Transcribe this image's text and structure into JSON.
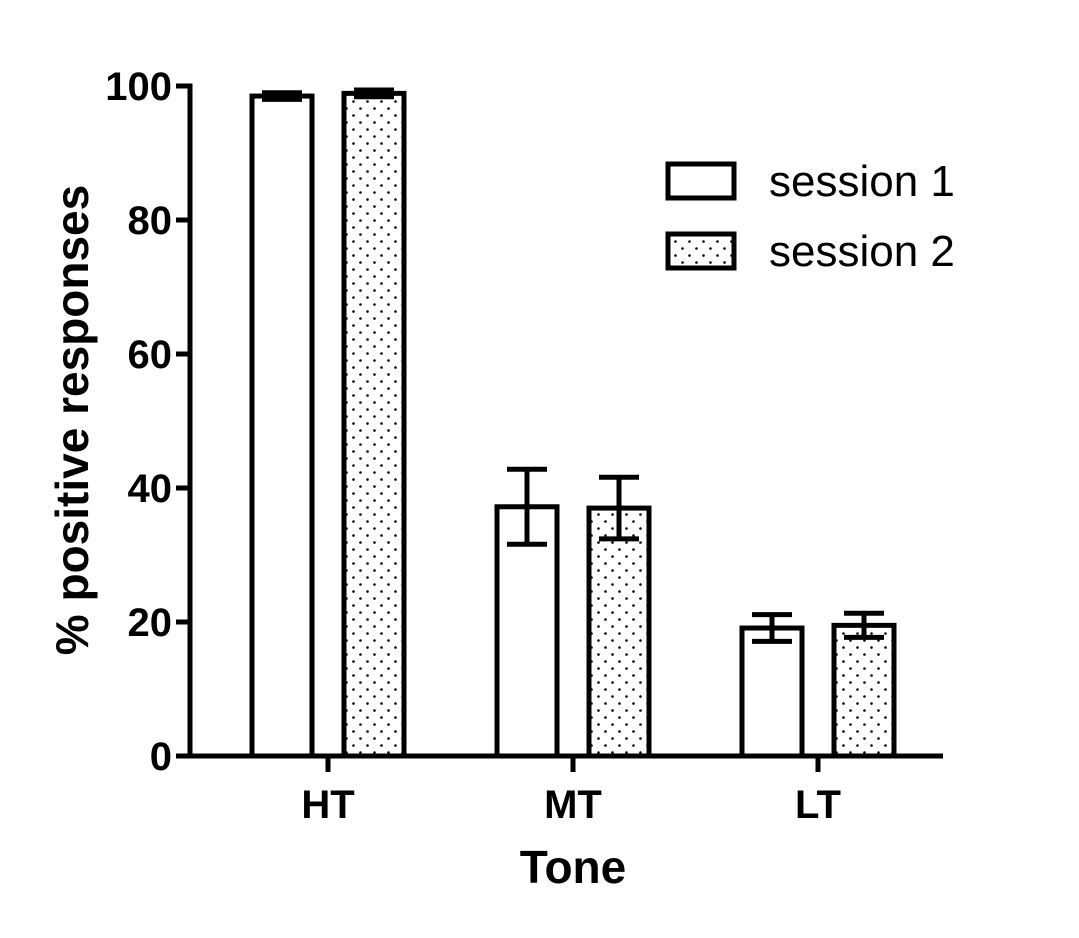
{
  "chart_data": {
    "type": "bar",
    "title": "",
    "xlabel": "Tone",
    "ylabel": "% positive responses",
    "categories": [
      "HT",
      "MT",
      "LT"
    ],
    "ylim": [
      0,
      100
    ],
    "yticks": [
      "0",
      "20",
      "40",
      "60",
      "80",
      "100"
    ],
    "series": [
      {
        "name": "session 1",
        "fill": "plain",
        "values": [
          98.5,
          37.2,
          19.1
        ],
        "error": [
          0.5,
          5.6,
          2.0
        ]
      },
      {
        "name": "session 2",
        "fill": "dotted",
        "values": [
          98.9,
          37.0,
          19.5
        ],
        "error": [
          0.5,
          4.6,
          1.8
        ]
      }
    ],
    "legend_position": "top-right",
    "grid": false,
    "colors": {
      "ink": "#000000",
      "bar_fill": "#ffffff"
    }
  }
}
